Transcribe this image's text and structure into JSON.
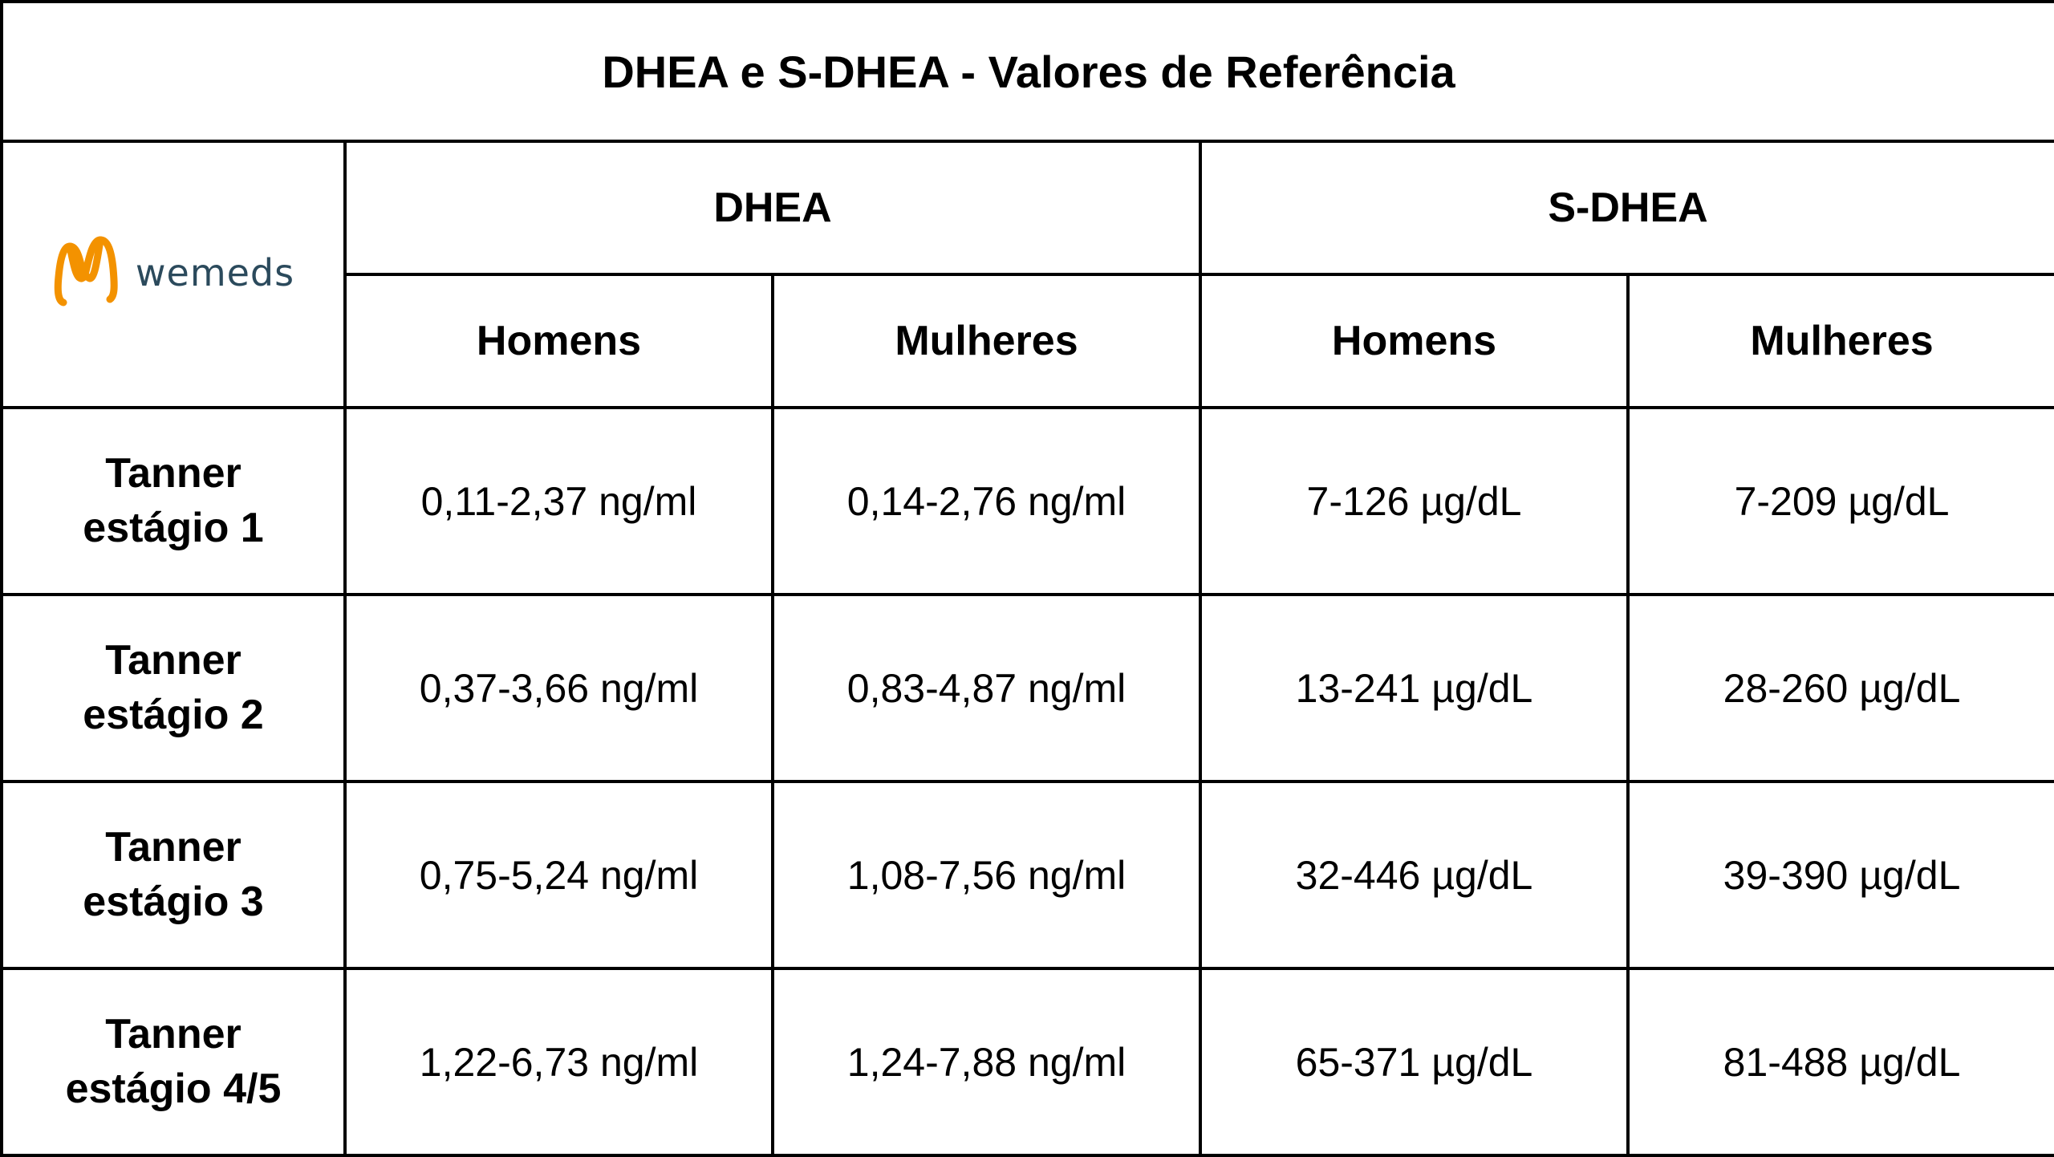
{
  "title": "DHEA e S-DHEA - Valores de Referência",
  "logo": {
    "text": "wemeds",
    "icon": "wemeds-logo-icon",
    "color_icon": "#f39200",
    "color_text": "#2b4a5c"
  },
  "groups": [
    {
      "label": "DHEA"
    },
    {
      "label": "S-DHEA"
    }
  ],
  "subheaders": [
    {
      "label": "Homens"
    },
    {
      "label": "Mulheres"
    },
    {
      "label": "Homens"
    },
    {
      "label": "Mulheres"
    }
  ],
  "rows": [
    {
      "stage_line1": "Tanner",
      "stage_line2": "estágio 1",
      "values": [
        "0,11-2,37 ng/ml",
        "0,14-2,76 ng/ml",
        "7-126 µg/dL",
        "7-209 µg/dL"
      ]
    },
    {
      "stage_line1": "Tanner",
      "stage_line2": "estágio 2",
      "values": [
        "0,37-3,66 ng/ml",
        "0,83-4,87 ng/ml",
        "13-241 µg/dL",
        "28-260 µg/dL"
      ]
    },
    {
      "stage_line1": "Tanner",
      "stage_line2": "estágio 3",
      "values": [
        "0,75-5,24 ng/ml",
        "1,08-7,56 ng/ml",
        "32-446 µg/dL",
        "39-390 µg/dL"
      ]
    },
    {
      "stage_line1": "Tanner",
      "stage_line2": "estágio 4/5",
      "values": [
        "1,22-6,73 ng/ml",
        "1,24-7,88 ng/ml",
        "65-371 µg/dL",
        "81-488 µg/dL"
      ]
    }
  ]
}
